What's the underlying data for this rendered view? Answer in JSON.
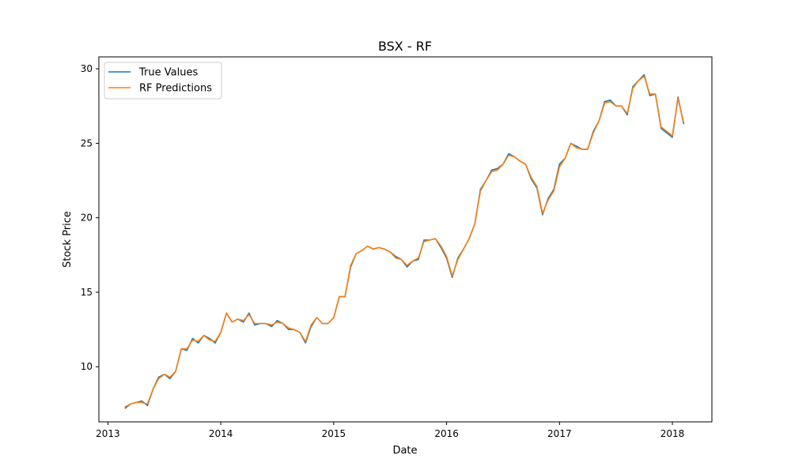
{
  "chart_data": {
    "type": "line",
    "title": "BSX - RF",
    "xlabel": "Date",
    "ylabel": "Stock Price",
    "xlim": [
      2012.92,
      2018.35
    ],
    "ylim": [
      6.3,
      30.8
    ],
    "x_ticks": [
      2013,
      2014,
      2015,
      2016,
      2017,
      2018
    ],
    "x_tick_labels": [
      "2013",
      "2014",
      "2015",
      "2016",
      "2017",
      "2018"
    ],
    "y_ticks": [
      10,
      15,
      20,
      25,
      30
    ],
    "y_tick_labels": [
      "10",
      "15",
      "20",
      "25",
      "30"
    ],
    "legend": {
      "position": "top-left"
    },
    "grid": false,
    "x": [
      2013.15,
      2013.2,
      2013.25,
      2013.3,
      2013.35,
      2013.4,
      2013.45,
      2013.5,
      2013.55,
      2013.6,
      2013.65,
      2013.7,
      2013.75,
      2013.8,
      2013.85,
      2013.9,
      2013.95,
      2014.0,
      2014.05,
      2014.1,
      2014.15,
      2014.2,
      2014.25,
      2014.3,
      2014.35,
      2014.4,
      2014.45,
      2014.5,
      2014.55,
      2014.6,
      2014.65,
      2014.7,
      2014.75,
      2014.8,
      2014.85,
      2014.9,
      2014.95,
      2015.0,
      2015.05,
      2015.1,
      2015.15,
      2015.2,
      2015.25,
      2015.3,
      2015.35,
      2015.4,
      2015.45,
      2015.5,
      2015.55,
      2015.6,
      2015.65,
      2015.7,
      2015.75,
      2015.8,
      2015.85,
      2015.9,
      2015.95,
      2016.0,
      2016.05,
      2016.1,
      2016.15,
      2016.2,
      2016.25,
      2016.3,
      2016.35,
      2016.4,
      2016.45,
      2016.5,
      2016.55,
      2016.6,
      2016.65,
      2016.7,
      2016.75,
      2016.8,
      2016.85,
      2016.9,
      2016.95,
      2017.0,
      2017.05,
      2017.1,
      2017.15,
      2017.2,
      2017.25,
      2017.3,
      2017.35,
      2017.4,
      2017.45,
      2017.5,
      2017.55,
      2017.6,
      2017.65,
      2017.7,
      2017.75,
      2017.8,
      2017.85,
      2017.9,
      2017.95,
      2018.0,
      2018.05,
      2018.1
    ],
    "series": [
      {
        "name": "True Values",
        "color": "#1f77b4",
        "values": [
          7.2,
          7.5,
          7.6,
          7.7,
          7.4,
          8.5,
          9.3,
          9.5,
          9.2,
          9.7,
          11.2,
          11.1,
          11.9,
          11.6,
          12.1,
          11.9,
          11.6,
          12.3,
          13.6,
          13.0,
          13.2,
          13.0,
          13.6,
          12.8,
          12.9,
          12.9,
          12.7,
          13.1,
          12.9,
          12.5,
          12.5,
          12.3,
          11.6,
          12.7,
          13.3,
          12.9,
          12.9,
          13.3,
          14.7,
          14.7,
          16.7,
          17.6,
          17.8,
          18.1,
          17.9,
          18.0,
          17.9,
          17.7,
          17.4,
          17.2,
          16.7,
          17.1,
          17.2,
          18.5,
          18.5,
          18.6,
          18.0,
          17.3,
          16.0,
          17.3,
          17.9,
          18.6,
          19.6,
          21.9,
          22.5,
          23.2,
          23.3,
          23.6,
          24.3,
          24.1,
          23.8,
          23.6,
          22.6,
          22.0,
          20.2,
          21.3,
          21.9,
          23.6,
          24.0,
          25.0,
          24.8,
          24.6,
          24.6,
          25.8,
          26.5,
          27.8,
          27.9,
          27.5,
          27.5,
          26.9,
          28.8,
          29.2,
          29.6,
          28.2,
          28.3,
          26.0,
          25.7,
          25.4,
          28.1,
          26.3
        ]
      },
      {
        "name": "RF Predictions",
        "color": "#ff7f0e",
        "values": [
          7.3,
          7.5,
          7.6,
          7.6,
          7.5,
          8.5,
          9.2,
          9.5,
          9.3,
          9.7,
          11.2,
          11.2,
          11.8,
          11.7,
          12.1,
          11.8,
          11.7,
          12.3,
          13.6,
          13.0,
          13.2,
          13.1,
          13.5,
          12.9,
          12.9,
          12.9,
          12.8,
          13.0,
          12.9,
          12.6,
          12.5,
          12.3,
          11.7,
          12.8,
          13.3,
          12.9,
          12.9,
          13.3,
          14.7,
          14.7,
          16.8,
          17.6,
          17.8,
          18.1,
          17.9,
          18.0,
          17.9,
          17.7,
          17.3,
          17.2,
          16.8,
          17.1,
          17.3,
          18.4,
          18.5,
          18.6,
          18.1,
          17.4,
          16.1,
          17.2,
          17.9,
          18.6,
          19.6,
          21.8,
          22.5,
          23.1,
          23.2,
          23.6,
          24.2,
          24.1,
          23.8,
          23.6,
          22.7,
          22.1,
          20.3,
          21.2,
          21.8,
          23.4,
          24.0,
          25.0,
          24.7,
          24.6,
          24.6,
          25.7,
          26.5,
          27.7,
          27.8,
          27.5,
          27.5,
          27.0,
          28.7,
          29.2,
          29.5,
          28.3,
          28.3,
          26.1,
          25.8,
          25.5,
          28.0,
          26.4
        ]
      }
    ]
  }
}
